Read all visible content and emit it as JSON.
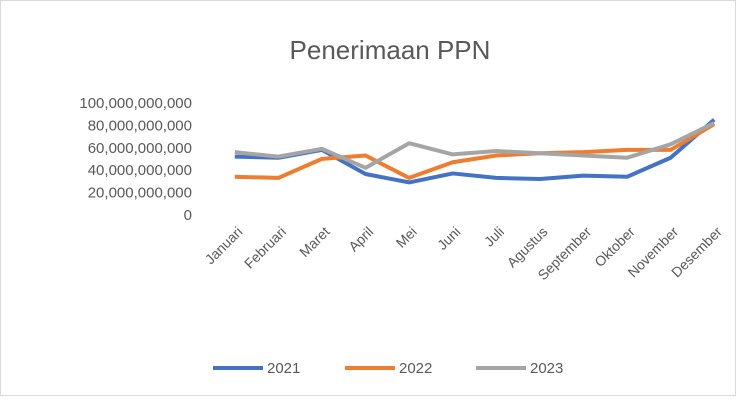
{
  "chart_data": {
    "type": "line",
    "title": "Penerimaan PPN",
    "categories": [
      "Januari",
      "Februari",
      "Maret",
      "April",
      "Mei",
      "Juni",
      "Juli",
      "Agustus",
      "September",
      "Oktober",
      "November",
      "Desember"
    ],
    "series": [
      {
        "name": "2021",
        "color": "#4472c4",
        "values": [
          53000000000,
          52000000000,
          59000000000,
          37500000000,
          30000000000,
          38000000000,
          34000000000,
          33000000000,
          36000000000,
          35000000000,
          52000000000,
          86000000000
        ]
      },
      {
        "name": "2022",
        "color": "#ed7d31",
        "values": [
          35000000000,
          34000000000,
          51000000000,
          54000000000,
          34000000000,
          48000000000,
          54000000000,
          56000000000,
          57000000000,
          59000000000,
          59000000000,
          82000000000
        ]
      },
      {
        "name": "2023",
        "color": "#a5a5a5",
        "values": [
          57000000000,
          53000000000,
          60000000000,
          43000000000,
          65000000000,
          55000000000,
          58000000000,
          56000000000,
          54000000000,
          52000000000,
          64000000000,
          83000000000
        ]
      }
    ],
    "ylim": [
      0,
      100000000000
    ],
    "yticks": [
      0,
      {
        "value": 20000000000,
        "label": "20,000,000,000"
      },
      {
        "value": 40000000000,
        "label": "40,000,000,000"
      },
      {
        "value": 60000000000,
        "label": "60,000,000,000"
      },
      {
        "value": 80000000000,
        "label": "80,000,000,000"
      },
      {
        "value": 100000000000,
        "label": "100,000,000,000"
      }
    ],
    "legend": "bottom"
  }
}
